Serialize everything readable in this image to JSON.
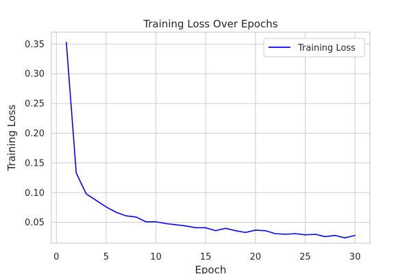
{
  "chart_data": {
    "type": "line",
    "title": "Training Loss Over Epochs",
    "xlabel": "Epoch",
    "ylabel": "Training Loss",
    "xlim": [
      -0.5,
      31.5
    ],
    "ylim": [
      0.015,
      0.37
    ],
    "xticks": [
      0,
      5,
      10,
      15,
      20,
      25,
      30
    ],
    "yticks": [
      0.05,
      0.1,
      0.15,
      0.2,
      0.25,
      0.3,
      0.35
    ],
    "ytick_labels": [
      "0.05",
      "0.10",
      "0.15",
      "0.20",
      "0.25",
      "0.30",
      "0.35"
    ],
    "grid": true,
    "legend": "top-right",
    "series": [
      {
        "name": "Training Loss",
        "color": "#0000ff",
        "x": [
          1,
          2,
          3,
          4,
          5,
          6,
          7,
          8,
          9,
          10,
          11,
          12,
          13,
          14,
          15,
          16,
          17,
          18,
          19,
          20,
          21,
          22,
          23,
          24,
          25,
          26,
          27,
          28,
          29,
          30
        ],
        "values": [
          0.353,
          0.133,
          0.098,
          0.087,
          0.076,
          0.067,
          0.061,
          0.059,
          0.051,
          0.051,
          0.048,
          0.046,
          0.044,
          0.041,
          0.041,
          0.036,
          0.04,
          0.036,
          0.033,
          0.037,
          0.036,
          0.031,
          0.03,
          0.031,
          0.029,
          0.03,
          0.026,
          0.028,
          0.024,
          0.028
        ]
      }
    ]
  }
}
